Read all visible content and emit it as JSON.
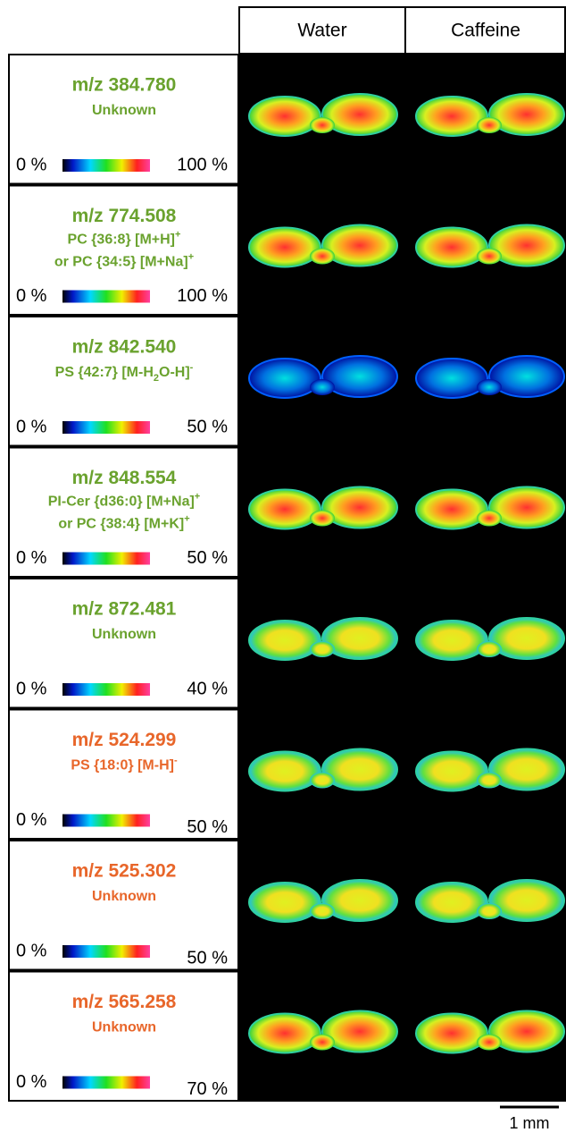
{
  "header": {
    "columns": [
      "Water",
      "Caffeine"
    ]
  },
  "rows": [
    {
      "title": "m/z 384.780",
      "color": "#6aa22e",
      "compound": [
        [
          {
            "text": "Unknown"
          }
        ]
      ],
      "scale": {
        "min": "0 %",
        "max": "100 %"
      }
    },
    {
      "title": "m/z 774.508",
      "color": "#6aa22e",
      "compound": [
        [
          {
            "text": "PC {36:8} [M+H]"
          },
          {
            "sup": "+"
          }
        ],
        [
          {
            "text": "or PC {34:5} [M+Na]"
          },
          {
            "sup": "+"
          }
        ]
      ],
      "scale": {
        "min": "0 %",
        "max": "100 %"
      }
    },
    {
      "title": "m/z 842.540",
      "color": "#6aa22e",
      "compound": [
        [
          {
            "text": "PS {42:7} [M-H"
          },
          {
            "sub": "2"
          },
          {
            "text": "O-H]"
          },
          {
            "sup": "-"
          }
        ]
      ],
      "scale": {
        "min": "0 %",
        "max": "50 %"
      }
    },
    {
      "title": "m/z 848.554",
      "color": "#6aa22e",
      "compound": [
        [
          {
            "text": "PI-Cer {d36:0} [M+Na]"
          },
          {
            "sup": "+"
          }
        ],
        [
          {
            "text": "or PC {38:4} [M+K]"
          },
          {
            "sup": "+"
          }
        ]
      ],
      "scale": {
        "min": "0 %",
        "max": "50 %"
      }
    },
    {
      "title": "m/z 872.481",
      "color": "#6aa22e",
      "compound": [
        [
          {
            "text": "Unknown"
          }
        ]
      ],
      "scale": {
        "min": "0 %",
        "max": "40 %"
      }
    },
    {
      "title": "m/z 524.299",
      "color": "#e8662a",
      "compound": [
        [
          {
            "text": "PS {18:0} [M-H]"
          },
          {
            "sup": "-"
          }
        ]
      ],
      "scale": {
        "min": "0 %",
        "max": "50 %"
      }
    },
    {
      "title": "m/z 525.302",
      "color": "#e8662a",
      "compound": [
        [
          {
            "text": "Unknown"
          }
        ]
      ],
      "scale": {
        "min": "0 %",
        "max": "50 %"
      }
    },
    {
      "title": "m/z 565.258",
      "color": "#e8662a",
      "compound": [
        [
          {
            "text": "Unknown"
          }
        ]
      ],
      "scale": {
        "min": "0 %",
        "max": "70 %"
      }
    }
  ],
  "scale_bar": "1 mm"
}
